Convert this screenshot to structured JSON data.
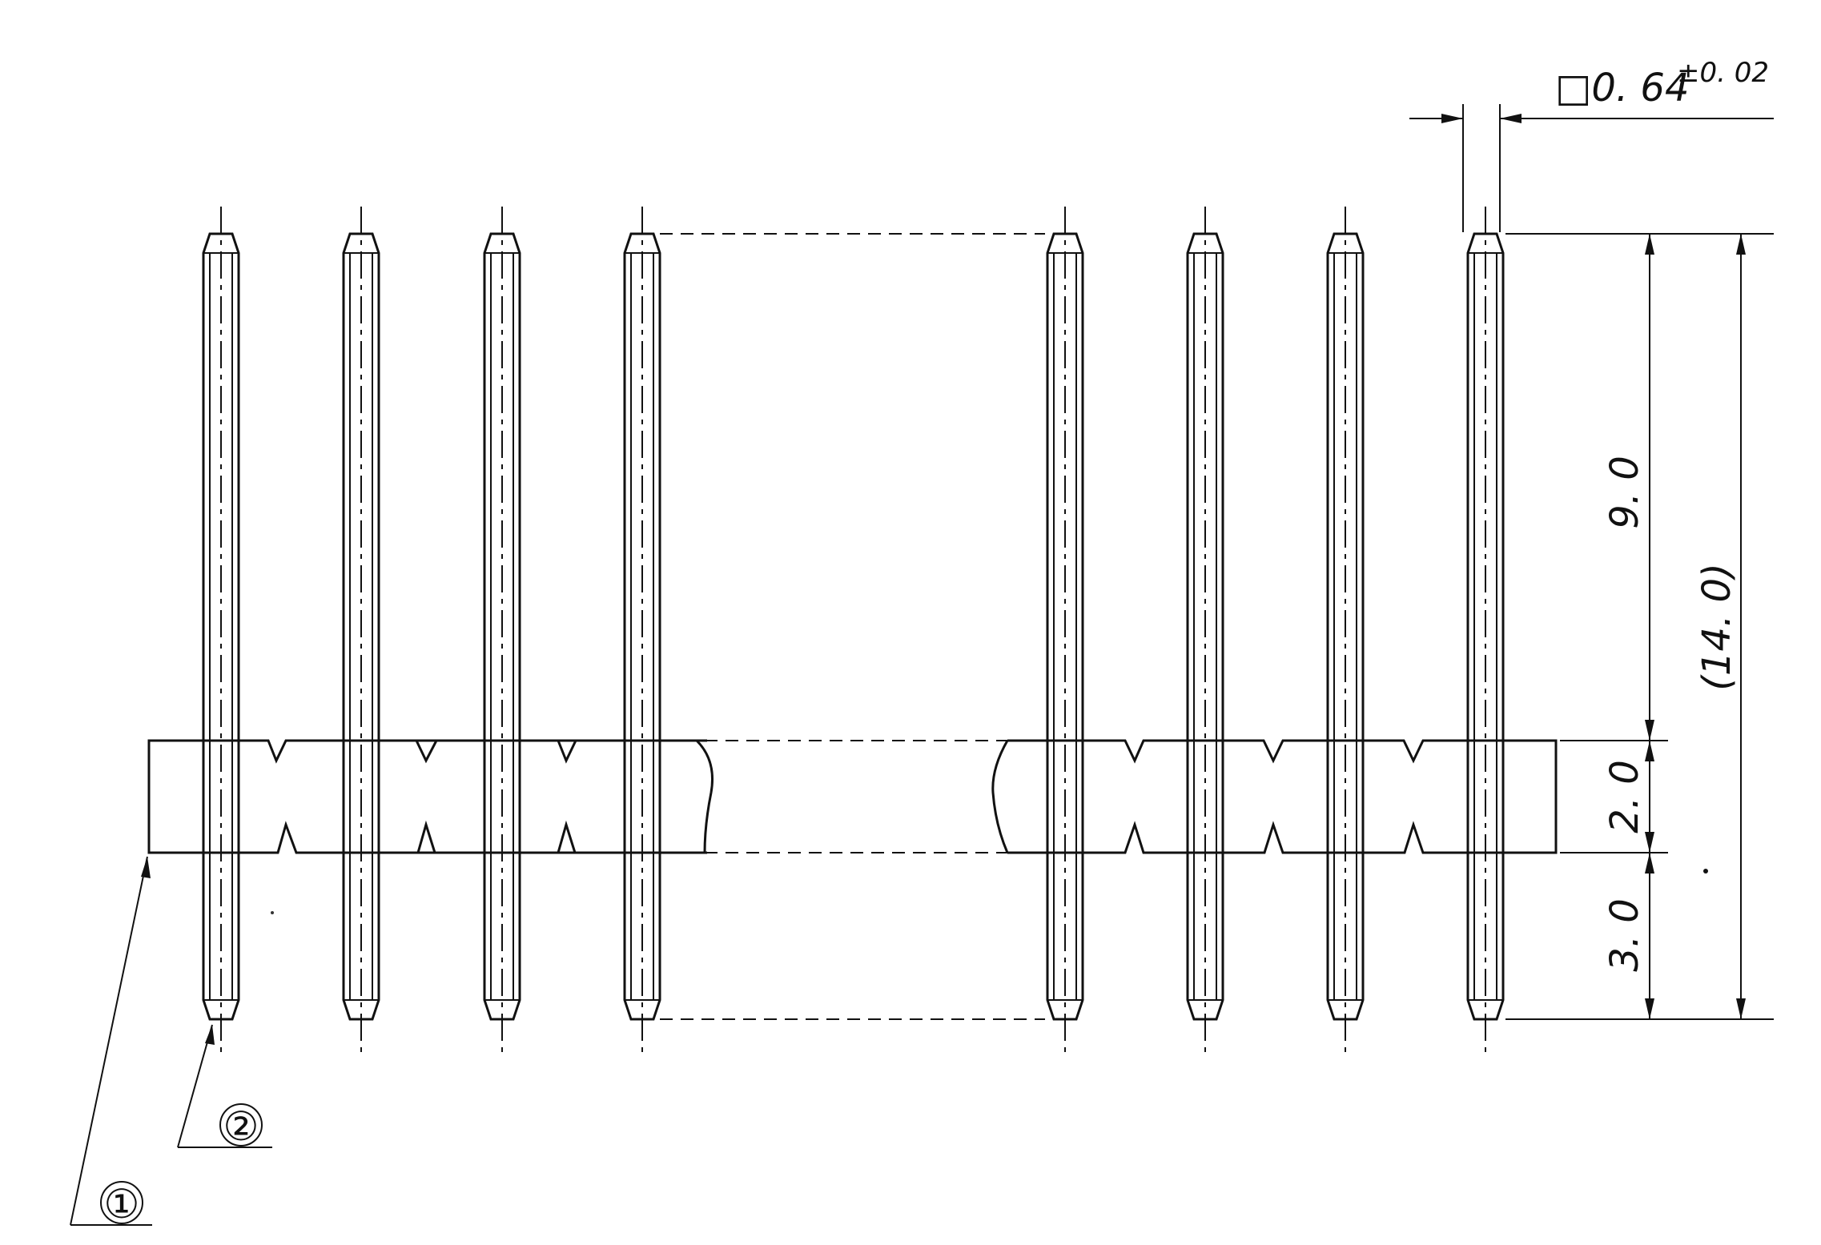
{
  "dimensions": {
    "pin_section": "□0. 64",
    "pin_section_tol": "±0. 02",
    "upper_length": "9. 0",
    "total_length": "(14. 0)",
    "housing_height": "2. 0",
    "lower_length": "3. 0"
  },
  "callouts": {
    "housing": "①",
    "pin": "②"
  }
}
